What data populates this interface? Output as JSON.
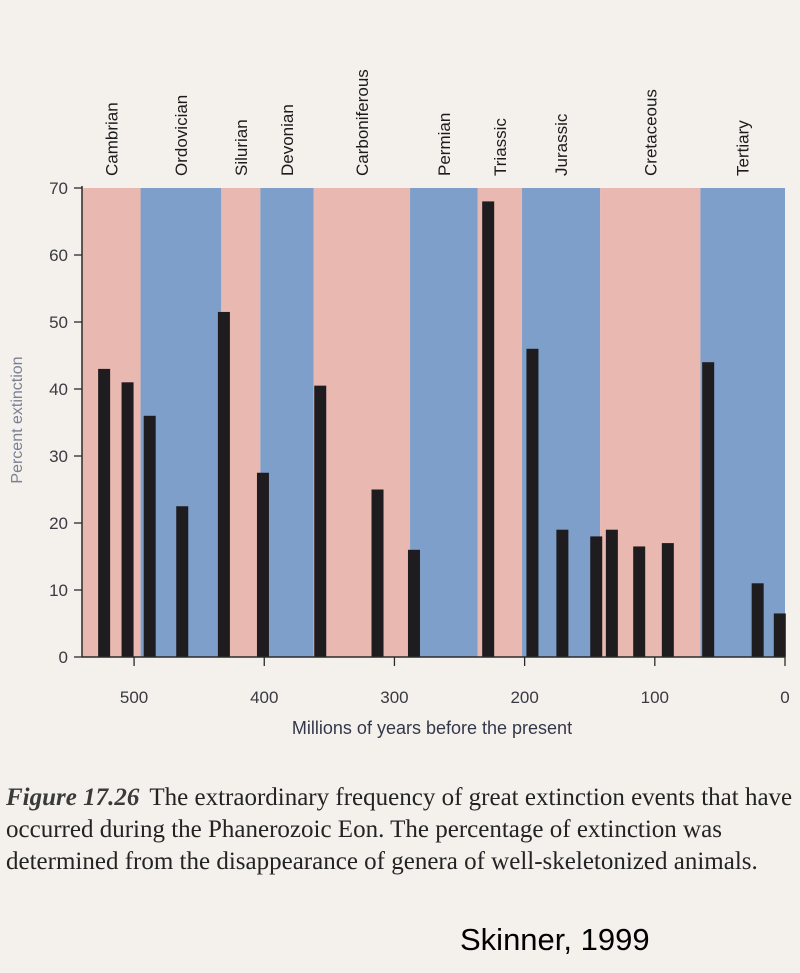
{
  "chart_data": {
    "type": "bar",
    "xlabel": "Millions of years before the present",
    "ylabel": "Percent extinction",
    "xlim": [
      540,
      0
    ],
    "ylim": [
      0,
      70
    ],
    "x_ticks": [
      500,
      400,
      300,
      200,
      100,
      0
    ],
    "y_ticks": [
      0,
      10,
      20,
      30,
      40,
      50,
      60,
      70
    ],
    "periods": [
      {
        "name": "Cambrian",
        "start": 540,
        "end": 495,
        "color": "#e9b8b1"
      },
      {
        "name": "Ordovician",
        "start": 495,
        "end": 433,
        "color": "#7e9fc9"
      },
      {
        "name": "Silurian",
        "start": 433,
        "end": 403,
        "color": "#e9b8b1"
      },
      {
        "name": "Devonian",
        "start": 403,
        "end": 362,
        "color": "#7e9fc9"
      },
      {
        "name": "Carboniferous",
        "start": 362,
        "end": 288,
        "color": "#e9b8b1"
      },
      {
        "name": "Permian",
        "start": 288,
        "end": 236,
        "color": "#7e9fc9"
      },
      {
        "name": "Triassic",
        "start": 236,
        "end": 202,
        "color": "#e9b8b1"
      },
      {
        "name": "Jurassic",
        "start": 202,
        "end": 142,
        "color": "#7e9fc9"
      },
      {
        "name": "Cretaceous",
        "start": 142,
        "end": 65,
        "color": "#e9b8b1"
      },
      {
        "name": "Tertiary",
        "start": 65,
        "end": 0,
        "color": "#7e9fc9"
      }
    ],
    "bars": [
      {
        "x": 523,
        "value": 43
      },
      {
        "x": 505,
        "value": 41
      },
      {
        "x": 488,
        "value": 36
      },
      {
        "x": 463,
        "value": 22.5
      },
      {
        "x": 431,
        "value": 51.5
      },
      {
        "x": 401,
        "value": 27.5
      },
      {
        "x": 357,
        "value": 40.5
      },
      {
        "x": 313,
        "value": 25
      },
      {
        "x": 285,
        "value": 16
      },
      {
        "x": 228,
        "value": 68
      },
      {
        "x": 194,
        "value": 46
      },
      {
        "x": 171,
        "value": 19
      },
      {
        "x": 145,
        "value": 18
      },
      {
        "x": 133,
        "value": 19
      },
      {
        "x": 112,
        "value": 16.5
      },
      {
        "x": 90,
        "value": 17
      },
      {
        "x": 59,
        "value": 44
      },
      {
        "x": 21,
        "value": 11
      },
      {
        "x": 4,
        "value": 6.5
      }
    ],
    "bar_color": "#1e1c1e"
  },
  "caption": {
    "label": "Figure 17.26",
    "text": "The extraordinary frequency of great extinction events that have occurred during the Phanerozoic Eon. The percentage of extinction was determined from the disappearance of genera of well-skeletonized animals."
  },
  "credit": "Skinner, 1999"
}
